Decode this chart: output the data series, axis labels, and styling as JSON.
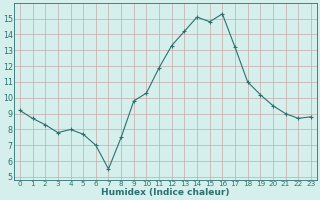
{
  "x": [
    0,
    1,
    2,
    3,
    4,
    5,
    6,
    7,
    8,
    9,
    10,
    11,
    12,
    13,
    14,
    15,
    16,
    17,
    18,
    19,
    20,
    21,
    22,
    23
  ],
  "y": [
    9.2,
    8.7,
    8.3,
    7.8,
    8.0,
    7.7,
    7.0,
    5.5,
    7.5,
    9.8,
    10.3,
    11.9,
    13.3,
    14.2,
    15.1,
    14.8,
    15.3,
    13.2,
    11.0,
    10.2,
    9.5,
    9.0,
    8.7,
    8.8
  ],
  "xlim": [
    -0.5,
    23.5
  ],
  "ylim": [
    4.8,
    16.0
  ],
  "yticks": [
    5,
    6,
    7,
    8,
    9,
    10,
    11,
    12,
    13,
    14,
    15
  ],
  "xticks": [
    0,
    1,
    2,
    3,
    4,
    5,
    6,
    7,
    8,
    9,
    10,
    11,
    12,
    13,
    14,
    15,
    16,
    17,
    18,
    19,
    20,
    21,
    22,
    23
  ],
  "xlabel": "Humidex (Indice chaleur)",
  "line_color": "#2d7070",
  "marker_color": "#2d7070",
  "bg_color": "#d5f0ec",
  "grid_color": "#c8aaaa",
  "axis_color": "#2d7070"
}
